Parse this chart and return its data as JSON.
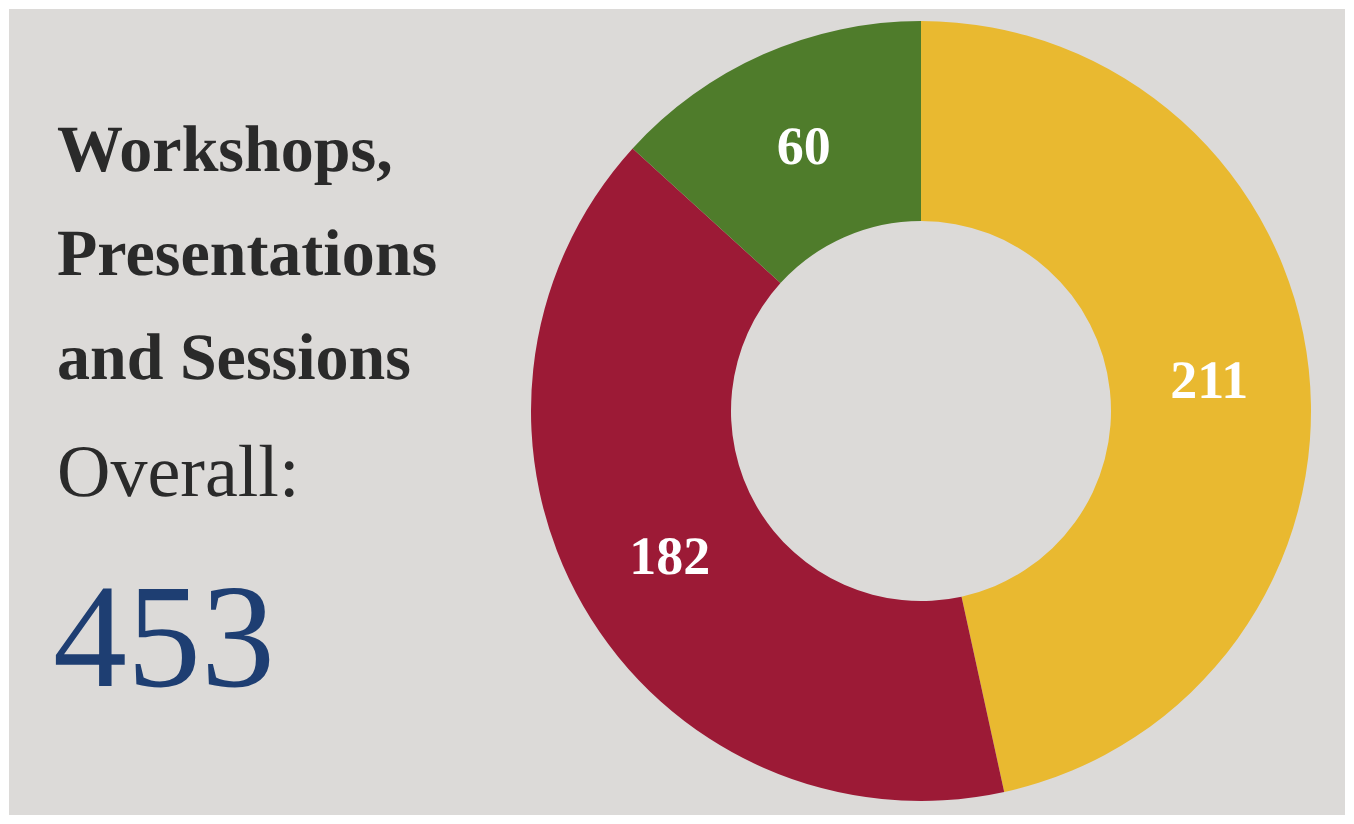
{
  "chart_data": {
    "type": "donut",
    "title": "Workshops, Presentations and Sessions",
    "subtitle": "Overall:",
    "annotations": [
      "453"
    ],
    "categories": [
      null,
      null,
      null
    ],
    "values": [
      211,
      182,
      60
    ],
    "colors": [
      "#e9b930",
      "#9c1a36",
      "#4f7c2b"
    ],
    "data_labels": true,
    "legend": false
  }
}
